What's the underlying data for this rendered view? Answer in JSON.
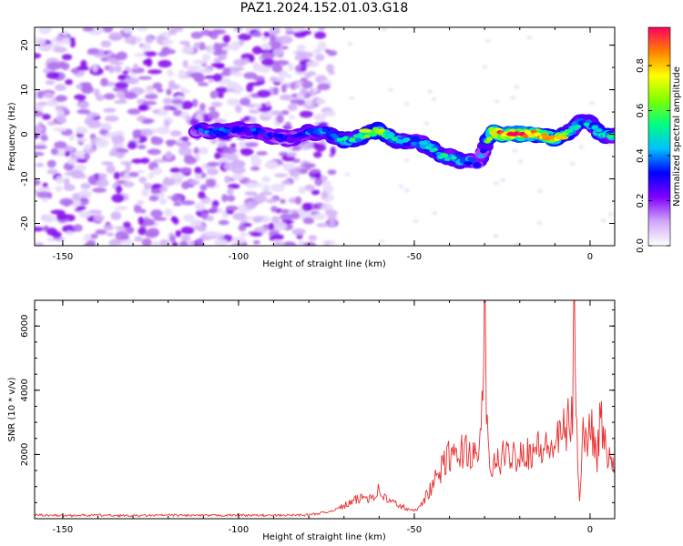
{
  "figure": {
    "title": "PAZ1.2024.152.01.03.G18"
  },
  "chart_data": [
    {
      "type": "heatmap",
      "title": "PAZ1.2024.152.01.03.G18",
      "xlabel": "Height of straight line (km)",
      "ylabel": "Frequency (Hz)",
      "xlim": [
        -158,
        7
      ],
      "ylim": [
        -25,
        24
      ],
      "xticks": [
        -150,
        -100,
        -50,
        0
      ],
      "yticks": [
        -20,
        -10,
        0,
        10,
        20
      ],
      "colorbar": {
        "label": "Normalized spectral amplitude",
        "ticks": [
          0.0,
          0.2,
          0.4,
          0.6,
          0.8
        ],
        "range": [
          0,
          0.97
        ],
        "colors": [
          "#ffffff",
          "#d0a8f8",
          "#8000ff",
          "#0000ff",
          "#00c0ff",
          "#00ff80",
          "#80ff00",
          "#ffff00",
          "#ff8000",
          "#ff0060"
        ]
      },
      "ridge": {
        "x": [
          -112,
          -105,
          -100,
          -95,
          -90,
          -85,
          -80,
          -75,
          -70,
          -65,
          -60,
          -55,
          -50,
          -45,
          -42,
          -40,
          -37,
          -35,
          -32,
          -30,
          -28,
          -25,
          -20,
          -15,
          -10,
          -5,
          -2,
          0,
          3,
          7
        ],
        "frequency": [
          1.0,
          0.5,
          1.0,
          0.5,
          -0.5,
          -1.0,
          0.5,
          0.5,
          -1.5,
          -0.5,
          1.0,
          -1.5,
          -1.5,
          -3.0,
          -5.0,
          -5.0,
          -6.0,
          -6.0,
          -6.5,
          -3.0,
          0.5,
          0.0,
          0.0,
          0.0,
          -1.0,
          1.0,
          3.0,
          2.5,
          0.0,
          -0.5
        ],
        "amplitude": [
          0.35,
          0.45,
          0.35,
          0.4,
          0.3,
          0.3,
          0.4,
          0.45,
          0.5,
          0.55,
          0.7,
          0.5,
          0.45,
          0.5,
          0.55,
          0.45,
          0.5,
          0.45,
          0.4,
          0.4,
          0.85,
          0.9,
          0.97,
          0.8,
          0.85,
          0.5,
          0.45,
          0.5,
          0.55,
          0.5
        ]
      },
      "noise_region_x": [
        -158,
        -73
      ]
    },
    {
      "type": "line",
      "xlabel": "Height of straight line (km)",
      "ylabel": "SNR (10 * v/v)",
      "xlim": [
        -158,
        7
      ],
      "ylim": [
        0,
        6800
      ],
      "xticks": [
        -150,
        -100,
        -50,
        0
      ],
      "yticks": [
        2000,
        4000,
        6000
      ],
      "series": [
        {
          "color": "#e83030",
          "x": [
            -158,
            -150,
            -140,
            -130,
            -120,
            -110,
            -100,
            -90,
            -80,
            -75,
            -72,
            -70,
            -67,
            -65,
            -62,
            -60,
            -58,
            -56,
            -54,
            -52,
            -50,
            -48,
            -46,
            -44,
            -42,
            -40,
            -38,
            -36,
            -34,
            -32,
            -31,
            -30,
            -29.5,
            -29,
            -28.5,
            -28,
            -27,
            -25,
            -22,
            -20,
            -17,
            -15,
            -12,
            -10,
            -8,
            -6,
            -5,
            -4.5,
            -4,
            -3.5,
            -3,
            -2,
            -1,
            0,
            1,
            2,
            3,
            4,
            5,
            6,
            7
          ],
          "y": [
            120,
            100,
            110,
            90,
            110,
            100,
            110,
            100,
            120,
            200,
            300,
            400,
            550,
            650,
            700,
            900,
            600,
            500,
            400,
            300,
            250,
            500,
            800,
            1200,
            1600,
            2000,
            1800,
            2200,
            2100,
            1700,
            2800,
            6800,
            3500,
            2100,
            1300,
            1600,
            1700,
            1900,
            2000,
            2050,
            2100,
            2200,
            2150,
            2300,
            2600,
            3000,
            3300,
            6200,
            3500,
            1900,
            700,
            2800,
            2200,
            3300,
            2400,
            2000,
            3200,
            2300,
            2100,
            1700,
            1500
          ]
        }
      ]
    }
  ]
}
